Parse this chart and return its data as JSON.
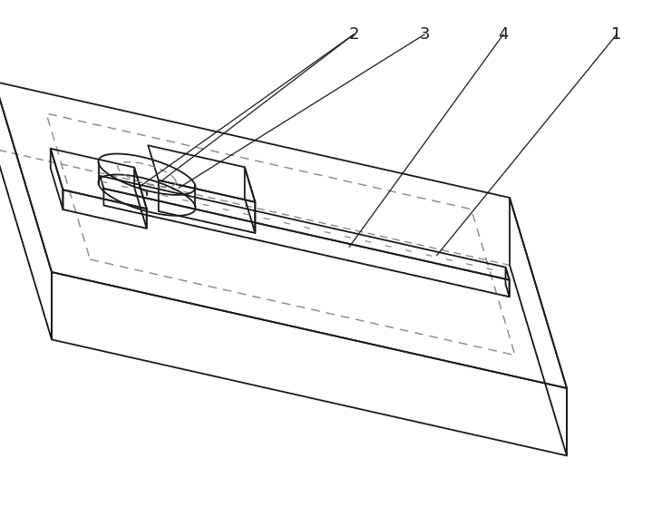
{
  "bg_color": "#ffffff",
  "line_color": "#1a1a1a",
  "dashed_color": "#888888",
  "line_width": 1.3,
  "dashed_lw": 1.0,
  "fig_width": 7.3,
  "fig_height": 5.59,
  "dpi": 100
}
